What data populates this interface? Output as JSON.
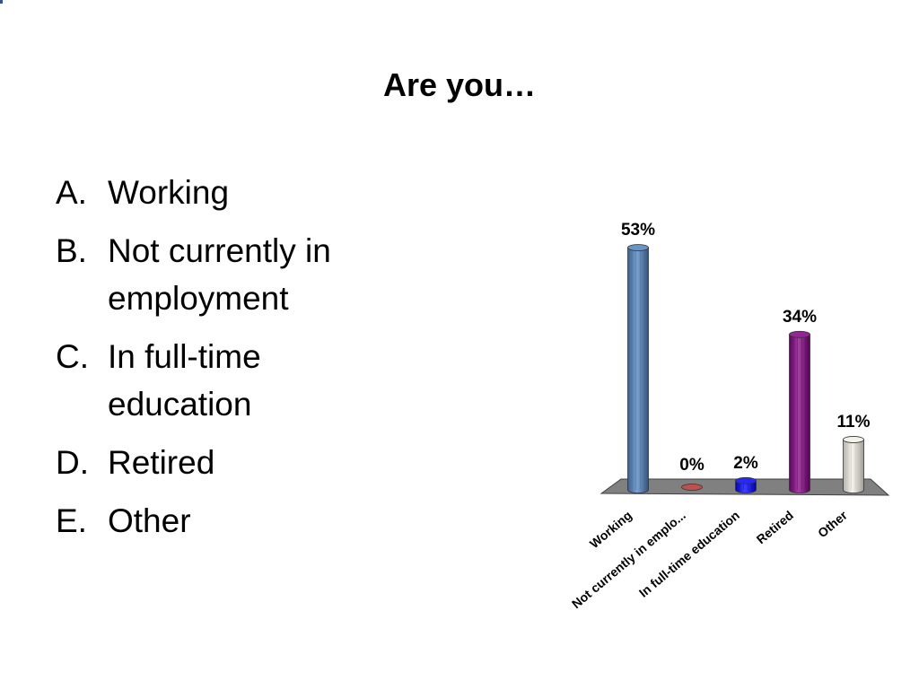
{
  "slide": {
    "title": "Are you…",
    "options": [
      {
        "letter": "A.",
        "text": "Working"
      },
      {
        "letter": "B.",
        "text": "Not currently in employment"
      },
      {
        "letter": "C.",
        "text": "In full-time education"
      },
      {
        "letter": "D.",
        "text": "Retired"
      },
      {
        "letter": "E.",
        "text": "Other"
      }
    ]
  },
  "chart_data": {
    "type": "bar",
    "categories": [
      "Working",
      "Not currently in emplo...",
      "In full-time education",
      "Retired",
      "Other"
    ],
    "values": [
      53,
      0,
      2,
      34,
      11
    ],
    "data_labels": [
      "53%",
      "0%",
      "2%",
      "34%",
      "11%"
    ],
    "title": "",
    "xlabel": "",
    "ylabel": "",
    "ylim": [
      0,
      53
    ],
    "grid": false,
    "legend": "none",
    "style": "3d-cylinder",
    "colors": [
      "#4f81bd",
      "#c0504d",
      "#0000ff",
      "#800080",
      "#f2f0e6"
    ],
    "floor_color": "#808080"
  }
}
